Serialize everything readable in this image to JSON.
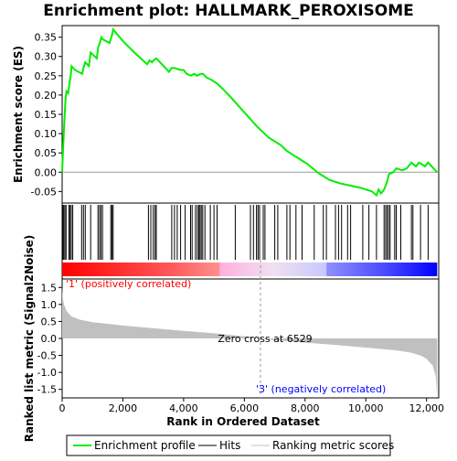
{
  "chart_data": {
    "type": "line",
    "title": "Enrichment plot: HALLMARK_PEROXISOME",
    "colors": {
      "enrichment_line": "#00ee00",
      "hit_line": "#000000",
      "metric_fill": "#c0c0c0",
      "pos_band": "#ff0000",
      "neg_band": "#0000ff",
      "pos_label": "#ff0000",
      "neg_label": "#0000ff",
      "frame": "#000000"
    },
    "es_panel": {
      "ylabel": "Enrichment score (ES)",
      "ylim": [
        -0.08,
        0.38
      ],
      "yticks": [
        -0.05,
        0.0,
        0.05,
        0.1,
        0.15,
        0.2,
        0.25,
        0.3,
        0.35
      ],
      "ytick_labels": [
        "-0.05",
        "0.00",
        "0.05",
        "0.10",
        "0.15",
        "0.20",
        "0.25",
        "0.30",
        "0.35"
      ],
      "zero_line": 0.0,
      "profile": [
        [
          0,
          0.0
        ],
        [
          30,
          0.06
        ],
        [
          60,
          0.11
        ],
        [
          90,
          0.16
        ],
        [
          110,
          0.19
        ],
        [
          140,
          0.21
        ],
        [
          200,
          0.205
        ],
        [
          240,
          0.23
        ],
        [
          290,
          0.255
        ],
        [
          310,
          0.275
        ],
        [
          420,
          0.265
        ],
        [
          660,
          0.255
        ],
        [
          700,
          0.27
        ],
        [
          760,
          0.285
        ],
        [
          880,
          0.275
        ],
        [
          940,
          0.31
        ],
        [
          1140,
          0.295
        ],
        [
          1190,
          0.325
        ],
        [
          1240,
          0.335
        ],
        [
          1290,
          0.35
        ],
        [
          1330,
          0.345
        ],
        [
          1560,
          0.335
        ],
        [
          1640,
          0.355
        ],
        [
          1680,
          0.37
        ],
        [
          2000,
          0.34
        ],
        [
          2380,
          0.31
        ],
        [
          2800,
          0.28
        ],
        [
          2880,
          0.29
        ],
        [
          2960,
          0.285
        ],
        [
          3010,
          0.29
        ],
        [
          3100,
          0.295
        ],
        [
          3520,
          0.26
        ],
        [
          3600,
          0.27
        ],
        [
          3700,
          0.27
        ],
        [
          3900,
          0.265
        ],
        [
          4000,
          0.265
        ],
        [
          4100,
          0.255
        ],
        [
          4240,
          0.25
        ],
        [
          4350,
          0.255
        ],
        [
          4440,
          0.25
        ],
        [
          4560,
          0.255
        ],
        [
          4640,
          0.255
        ],
        [
          4760,
          0.245
        ],
        [
          4900,
          0.24
        ],
        [
          5100,
          0.23
        ],
        [
          5300,
          0.215
        ],
        [
          5600,
          0.19
        ],
        [
          6000,
          0.155
        ],
        [
          6400,
          0.12
        ],
        [
          6800,
          0.09
        ],
        [
          7200,
          0.07
        ],
        [
          7400,
          0.055
        ],
        [
          7600,
          0.045
        ],
        [
          7800,
          0.035
        ],
        [
          8100,
          0.02
        ],
        [
          8400,
          0.0
        ],
        [
          8600,
          -0.01
        ],
        [
          8800,
          -0.02
        ],
        [
          9000,
          -0.025
        ],
        [
          9200,
          -0.03
        ],
        [
          9500,
          -0.035
        ],
        [
          9800,
          -0.04
        ],
        [
          10000,
          -0.045
        ],
        [
          10200,
          -0.05
        ],
        [
          10350,
          -0.06
        ],
        [
          10420,
          -0.045
        ],
        [
          10500,
          -0.055
        ],
        [
          10600,
          -0.045
        ],
        [
          10700,
          -0.025
        ],
        [
          10760,
          -0.005
        ],
        [
          10900,
          0.0
        ],
        [
          11000,
          0.01
        ],
        [
          11200,
          0.005
        ],
        [
          11350,
          0.01
        ],
        [
          11500,
          0.025
        ],
        [
          11650,
          0.015
        ],
        [
          11750,
          0.025
        ],
        [
          11950,
          0.015
        ],
        [
          12050,
          0.025
        ],
        [
          12350,
          0.0
        ]
      ]
    },
    "hits_panel": {
      "hit_ranks": [
        20,
        50,
        90,
        130,
        220,
        260,
        300,
        350,
        640,
        700,
        760,
        940,
        1180,
        1230,
        1280,
        1330,
        1600,
        1640,
        1680,
        2840,
        2920,
        3000,
        3060,
        3100,
        3610,
        3700,
        3790,
        3900,
        4050,
        4230,
        4280,
        4390,
        4450,
        4500,
        4540,
        4580,
        4630,
        4700,
        4880,
        5000,
        5100,
        5700,
        6200,
        6300,
        6400,
        6450,
        6500,
        6620,
        6680,
        7000,
        7100,
        7400,
        7500,
        7700,
        7900,
        8300,
        8600,
        8700,
        9000,
        9100,
        9200,
        9400,
        9500,
        9900,
        10100,
        10350,
        10600,
        10650,
        10700,
        10750,
        10800,
        10950,
        11000,
        11150,
        11500,
        11550,
        11800,
        12050
      ]
    },
    "metric_panel": {
      "ylabel": "Ranked list metric (Signal2Noise)",
      "ylim": [
        -1.75,
        1.75
      ],
      "yticks": [
        -1.5,
        -1.0,
        -0.5,
        0.0,
        0.5,
        1.0,
        1.5
      ],
      "ytick_labels": [
        "-1.5",
        "-1.0",
        "-0.5",
        "0.0",
        "0.5",
        "1.0",
        "1.5"
      ],
      "profile": [
        [
          0,
          1.5
        ],
        [
          20,
          1.2
        ],
        [
          60,
          1.0
        ],
        [
          150,
          0.8
        ],
        [
          300,
          0.65
        ],
        [
          600,
          0.55
        ],
        [
          1000,
          0.48
        ],
        [
          2000,
          0.38
        ],
        [
          3000,
          0.3
        ],
        [
          4000,
          0.22
        ],
        [
          5000,
          0.15
        ],
        [
          6000,
          0.06
        ],
        [
          6529,
          0.0
        ],
        [
          7000,
          -0.05
        ],
        [
          8000,
          -0.12
        ],
        [
          9000,
          -0.19
        ],
        [
          10000,
          -0.27
        ],
        [
          11000,
          -0.35
        ],
        [
          11500,
          -0.42
        ],
        [
          11800,
          -0.5
        ],
        [
          12000,
          -0.6
        ],
        [
          12200,
          -0.8
        ],
        [
          12300,
          -1.1
        ],
        [
          12350,
          -1.7
        ]
      ],
      "zero_cross_label": "Zero cross at 6529",
      "zero_cross_rank": 6529,
      "pos_label": "'1' (positively correlated)",
      "neg_label": "'3' (negatively correlated)"
    },
    "xaxis": {
      "xlabel": "Rank in Ordered Dataset",
      "xlim": [
        0,
        12400
      ],
      "xticks": [
        0,
        2000,
        4000,
        6000,
        8000,
        10000,
        12000
      ],
      "xtick_labels": [
        "0",
        "2,000",
        "4,000",
        "6,000",
        "8,000",
        "10,000",
        "12,000"
      ],
      "n_genes": 12350
    },
    "legend": {
      "placement": "bottom",
      "items": [
        {
          "label": "Enrichment profile",
          "kind": "green-line"
        },
        {
          "label": "Hits",
          "kind": "black-line"
        },
        {
          "label": "Ranking metric scores",
          "kind": "gray-line"
        }
      ]
    }
  }
}
